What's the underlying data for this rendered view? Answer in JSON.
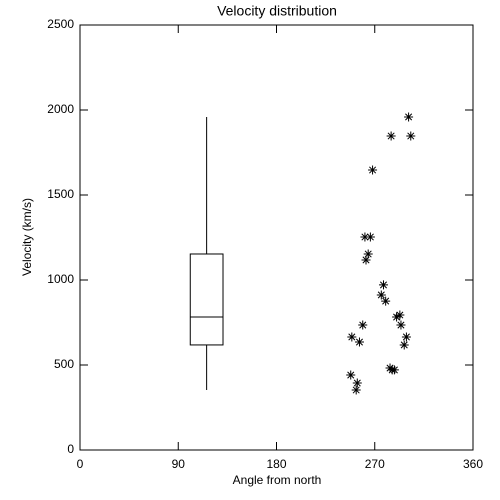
{
  "chart_data": [
    {
      "type": "box",
      "title": "Velocity distribution",
      "xlabel": "Angle from north",
      "ylabel": "Velocity (km/s)",
      "xlim": [
        0,
        360
      ],
      "xticks": [
        0,
        90,
        180,
        270,
        360
      ],
      "ylim": [
        0,
        2500
      ],
      "yticks": [
        0,
        500,
        1000,
        1500,
        2000,
        2500
      ],
      "x": 116,
      "width": 30,
      "whislo": 353,
      "q1": 618,
      "med": 782,
      "q3": 1153,
      "whishi": 1959,
      "color": "#000000"
    },
    {
      "type": "scatter",
      "color": "#000000",
      "x": [
        301,
        285,
        303,
        268,
        261,
        266,
        264,
        262,
        278,
        276,
        280,
        290,
        293,
        294,
        259,
        249,
        299,
        256,
        297,
        284,
        288,
        286,
        248,
        254,
        253
      ],
      "y": [
        1959,
        1847,
        1847,
        1647,
        1253,
        1253,
        1153,
        1118,
        971,
        912,
        876,
        782,
        794,
        735,
        735,
        665,
        665,
        635,
        618,
        482,
        471,
        471,
        441,
        394,
        353
      ]
    }
  ]
}
